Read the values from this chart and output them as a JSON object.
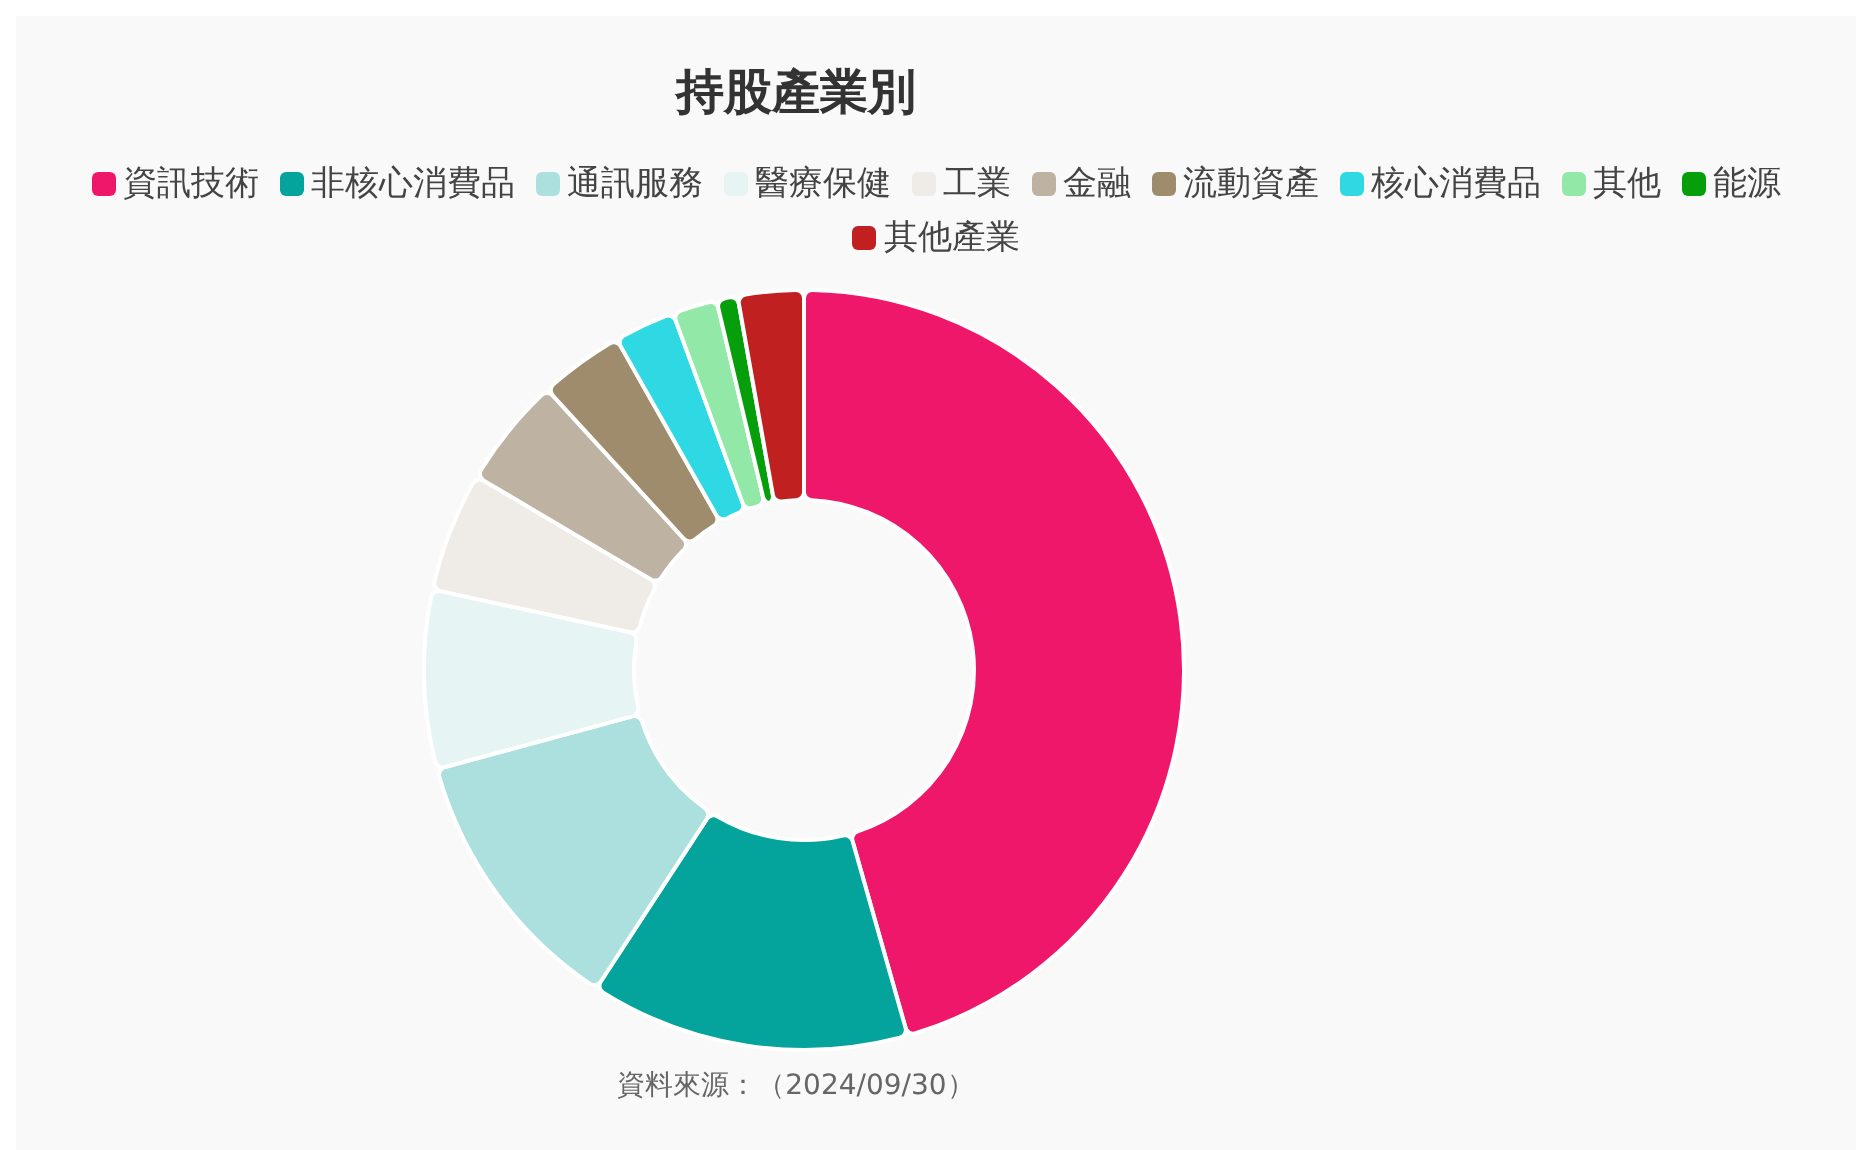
{
  "chart_data": {
    "type": "donut",
    "title": "持股產業別",
    "categories": [
      "資訊技術",
      "非核心消費品",
      "通訊服務",
      "醫療保健",
      "工業",
      "金融",
      "流動資產",
      "核心消費品",
      "其他",
      "能源",
      "其他產業"
    ],
    "values": [
      45.6,
      13.6,
      11.6,
      7.6,
      5.1,
      4.7,
      3.6,
      2.6,
      1.9,
      0.9,
      2.8
    ],
    "colors": [
      "#ef176a",
      "#04a39c",
      "#abe0df",
      "#e6f4f4",
      "#efebe6",
      "#beb2a2",
      "#9e8c6c",
      "#2fd9e3",
      "#92e8a6",
      "#079e0b",
      "#c0201f"
    ],
    "legend": "top",
    "annotations": [
      "資料來源：（2024/09/30）"
    ]
  }
}
